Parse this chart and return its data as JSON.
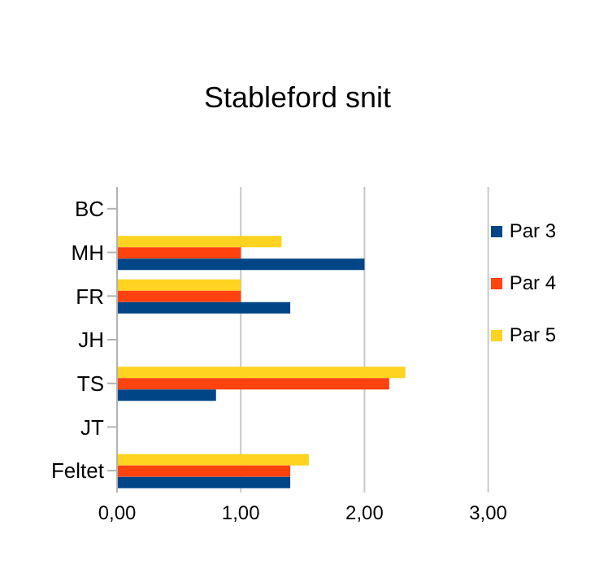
{
  "chart_data": {
    "type": "bar",
    "title": "Stableford snit",
    "orientation": "horizontal",
    "categories": [
      "BC",
      "MH",
      "FR",
      "JH",
      "TS",
      "JT",
      "Feltet"
    ],
    "series": [
      {
        "name": "Par 5",
        "color": "#ffd320",
        "values": [
          null,
          1.33,
          1.0,
          null,
          2.33,
          null,
          1.55
        ]
      },
      {
        "name": "Par 4",
        "color": "#ff420e",
        "values": [
          null,
          1.0,
          1.0,
          null,
          2.2,
          null,
          1.4
        ]
      },
      {
        "name": "Par 3",
        "color": "#004586",
        "values": [
          null,
          2.0,
          1.4,
          null,
          0.8,
          null,
          1.4
        ]
      }
    ],
    "xlim": [
      0,
      3
    ],
    "xticks": [
      {
        "value": 0,
        "label": "0,00"
      },
      {
        "value": 1,
        "label": "1,00"
      },
      {
        "value": 2,
        "label": "2,00"
      },
      {
        "value": 3,
        "label": "3,00"
      }
    ],
    "grid": "x",
    "legend": "right"
  }
}
